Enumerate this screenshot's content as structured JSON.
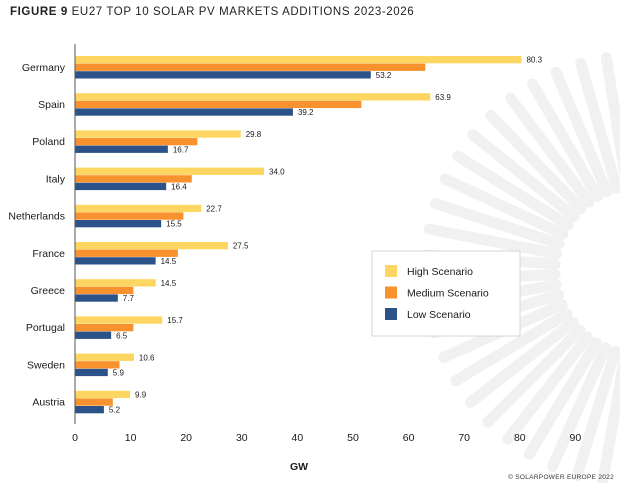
{
  "figure": {
    "label": "FIGURE 9",
    "title": "EU27 TOP 10 SOLAR PV MARKETS ADDITIONS 2023-2026"
  },
  "copyright": "© SOLARPOWER EUROPE 2022",
  "chart_data": {
    "type": "bar",
    "orientation": "horizontal",
    "categories": [
      "Germany",
      "Spain",
      "Poland",
      "Italy",
      "Netherlands",
      "France",
      "Greece",
      "Portugal",
      "Sweden",
      "Austria"
    ],
    "series": [
      {
        "name": "High Scenario",
        "color": "#FDD561",
        "values": [
          80.3,
          63.9,
          29.8,
          34.0,
          22.7,
          27.5,
          14.5,
          15.7,
          10.6,
          9.9
        ],
        "labeled": true
      },
      {
        "name": "Medium Scenario",
        "color": "#F7922F",
        "values": [
          63.0,
          51.5,
          22.0,
          21.0,
          19.5,
          18.5,
          10.5,
          10.5,
          8.0,
          6.8
        ],
        "labeled": false
      },
      {
        "name": "Low Scenario",
        "color": "#2C5389",
        "values": [
          53.2,
          39.2,
          16.7,
          16.4,
          15.5,
          14.5,
          7.7,
          6.5,
          5.9,
          5.2
        ],
        "labeled": true
      }
    ],
    "xlabel": "GW",
    "ylabel": "",
    "xlim": [
      0,
      90
    ],
    "xticks": [
      0,
      10,
      20,
      30,
      40,
      50,
      60,
      70,
      80,
      90
    ],
    "grid": false,
    "legend_position": "right"
  }
}
